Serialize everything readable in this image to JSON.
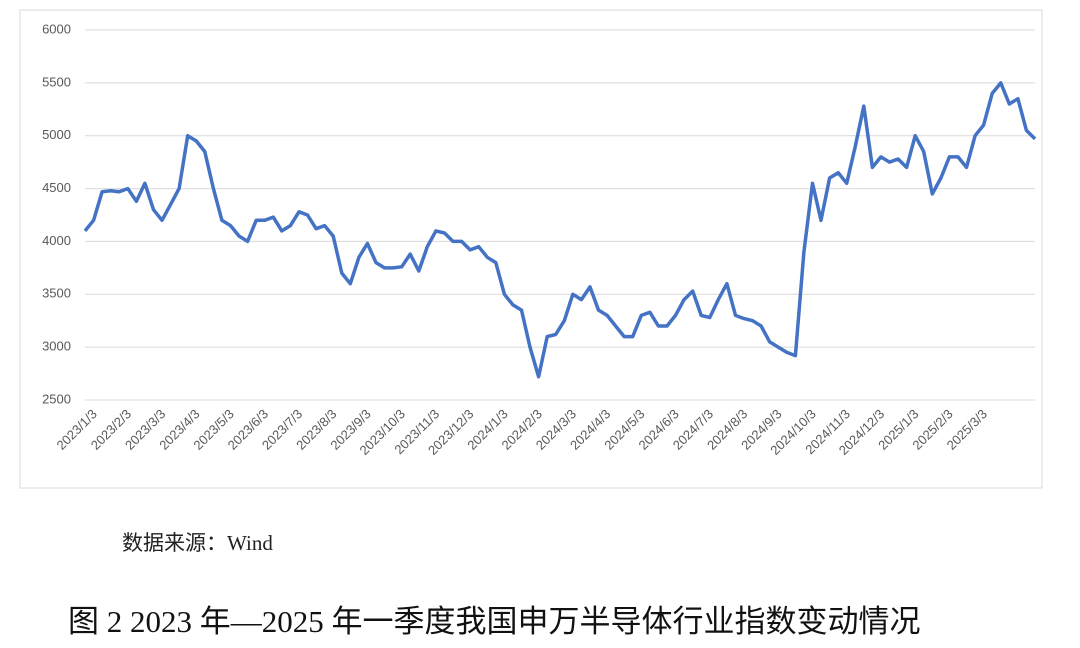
{
  "chart_data": {
    "type": "line",
    "source_note": "数据来源：Wind",
    "caption": "图 2 2023 年—2025 年一季度我国申万半导体行业指数变动情况",
    "categories": [
      "2023/1/3",
      null,
      null,
      null,
      "2023/2/3",
      null,
      null,
      null,
      "2023/3/3",
      null,
      null,
      null,
      "2023/4/3",
      null,
      null,
      null,
      "2023/5/3",
      null,
      null,
      null,
      "2023/6/3",
      null,
      null,
      null,
      "2023/7/3",
      null,
      null,
      null,
      "2023/8/3",
      null,
      null,
      null,
      "2023/9/3",
      null,
      null,
      null,
      "2023/10/3",
      null,
      null,
      null,
      "2023/11/3",
      null,
      null,
      null,
      "2023/12/3",
      null,
      null,
      null,
      "2024/1/3",
      null,
      null,
      null,
      "2024/2/3",
      null,
      null,
      null,
      "2024/3/3",
      null,
      null,
      null,
      "2024/4/3",
      null,
      null,
      null,
      "2024/5/3",
      null,
      null,
      null,
      "2024/6/3",
      null,
      null,
      null,
      "2024/7/3",
      null,
      null,
      null,
      "2024/8/3",
      null,
      null,
      null,
      "2024/9/3",
      null,
      null,
      null,
      "2024/10/3",
      null,
      null,
      null,
      "2024/11/3",
      null,
      null,
      null,
      "2024/12/3",
      null,
      null,
      null,
      "2025/1/3",
      null,
      null,
      null,
      "2025/2/3",
      null,
      null,
      null,
      "2025/3/3",
      null,
      null,
      null,
      null,
      null,
      null,
      null
    ],
    "series": [
      {
        "color": "#4472c4",
        "values": [
          4100,
          4200,
          4470,
          4480,
          4470,
          4500,
          4380,
          4550,
          4300,
          4200,
          4350,
          4500,
          5000,
          4950,
          4850,
          4500,
          4200,
          4150,
          4050,
          4000,
          4200,
          4200,
          4230,
          4100,
          4150,
          4280,
          4250,
          4120,
          4150,
          4050,
          3700,
          3600,
          3850,
          3980,
          3800,
          3750,
          3750,
          3760,
          3880,
          3720,
          3950,
          4100,
          4080,
          4000,
          4000,
          3920,
          3950,
          3850,
          3800,
          3500,
          3400,
          3350,
          3000,
          2720,
          3100,
          3120,
          3250,
          3500,
          3450,
          3570,
          3350,
          3300,
          3200,
          3100,
          3100,
          3300,
          3330,
          3200,
          3200,
          3300,
          3450,
          3530,
          3300,
          3280,
          3450,
          3600,
          3300,
          3270,
          3250,
          3200,
          3050,
          3000,
          2950,
          2920,
          3900,
          4550,
          4200,
          4600,
          4650,
          4550,
          4900,
          5280,
          4700,
          4800,
          4750,
          4780,
          4700,
          5000,
          4850,
          4450,
          4600,
          4800,
          4800,
          4700,
          5000,
          5100,
          5400,
          5500,
          5300,
          5350,
          5050,
          4970
        ]
      }
    ],
    "ylim": [
      2500,
      6000
    ],
    "yticks": [
      2500,
      3000,
      3500,
      4000,
      4500,
      5000,
      5500,
      6000
    ],
    "grid": true
  }
}
